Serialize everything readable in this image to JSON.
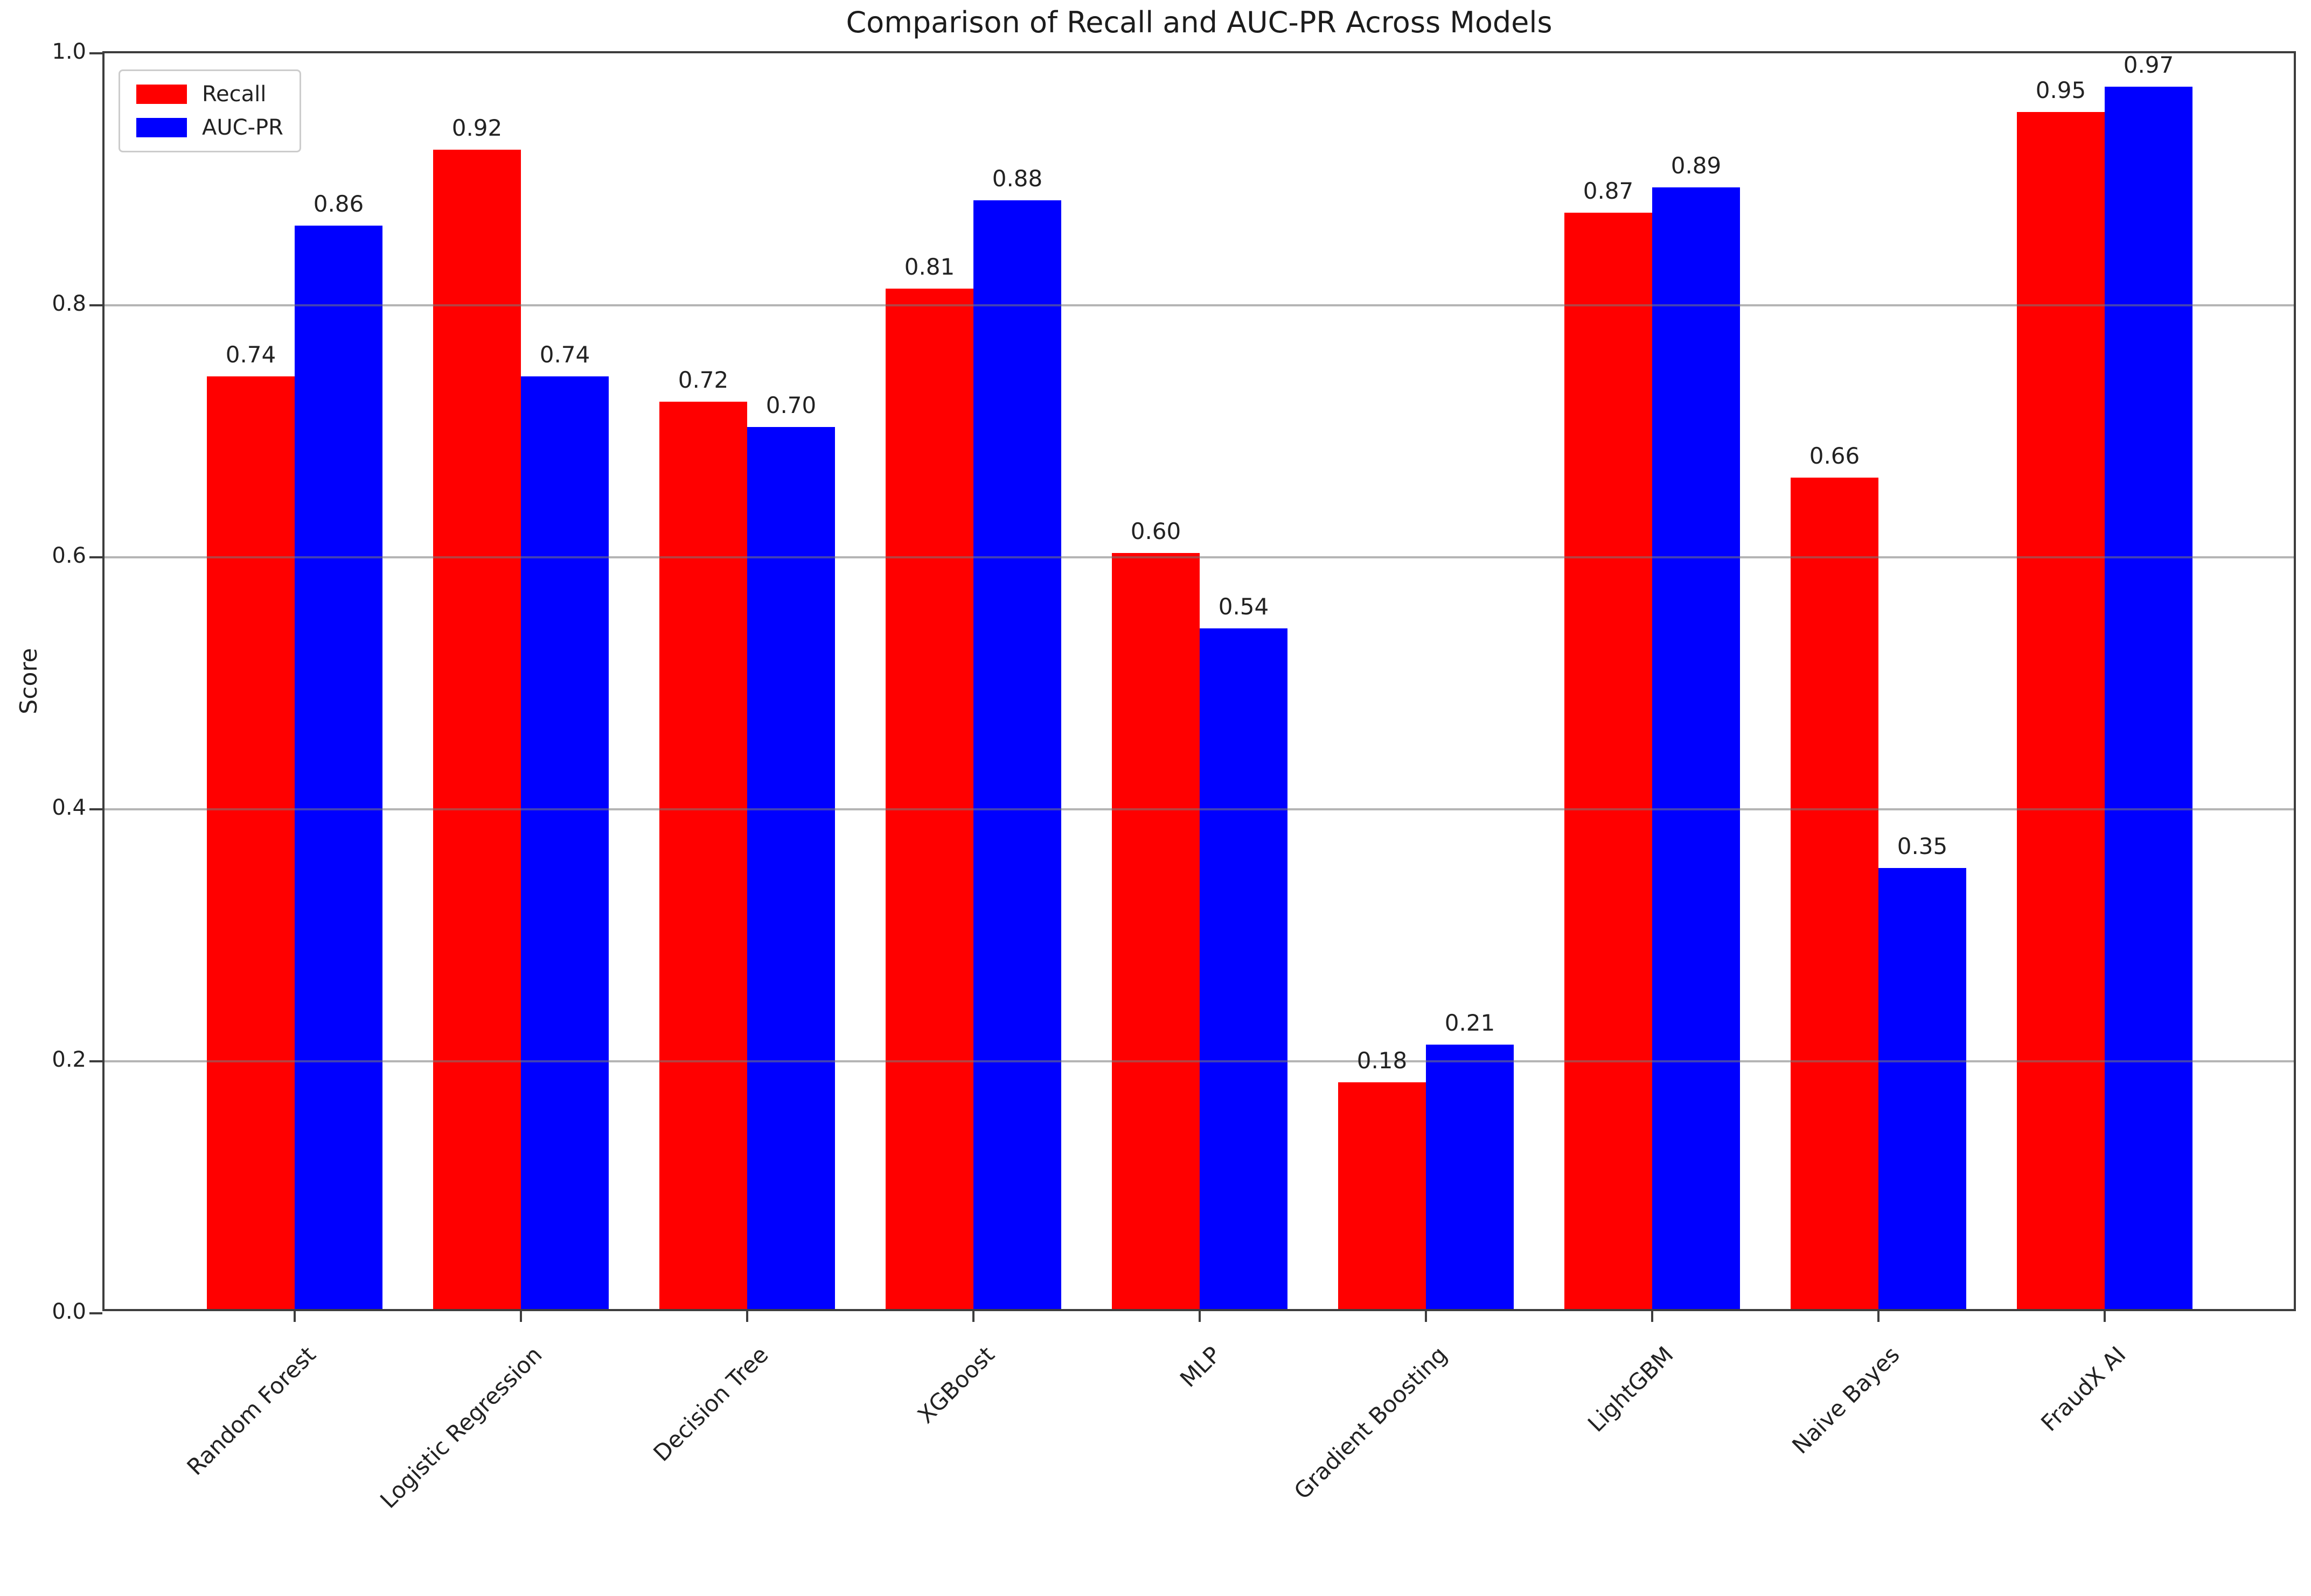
{
  "title": "Comparison of Recall and AUC-PR Across Models",
  "y_axis": {
    "label": "Score",
    "ticks": [
      0.0,
      0.2,
      0.4,
      0.6,
      0.8,
      1.0
    ]
  },
  "legend": {
    "items": [
      {
        "label": "Recall",
        "color": "#ff0000"
      },
      {
        "label": "AUC-PR",
        "color": "#0000ff"
      }
    ]
  },
  "chart_data": {
    "type": "bar",
    "title": "Comparison of Recall and AUC-PR Across Models",
    "xlabel": "",
    "ylabel": "Score",
    "ylim": [
      0,
      1
    ],
    "yticks": [
      0.0,
      0.2,
      0.4,
      0.6,
      0.8,
      1.0
    ],
    "grid": true,
    "legend_position": "upper left",
    "value_labels": true,
    "categories": [
      "Random Forest",
      "Logistic Regression",
      "Decision Tree",
      "XGBoost",
      "MLP",
      "Gradient Boosting",
      "LightGBM",
      "Naive Bayes",
      "FraudX AI"
    ],
    "series": [
      {
        "name": "Recall",
        "color": "#ff0000",
        "values": [
          0.74,
          0.92,
          0.72,
          0.81,
          0.6,
          0.18,
          0.87,
          0.66,
          0.95
        ]
      },
      {
        "name": "AUC-PR",
        "color": "#0000ff",
        "values": [
          0.86,
          0.74,
          0.7,
          0.88,
          0.54,
          0.21,
          0.89,
          0.35,
          0.97
        ]
      }
    ]
  }
}
